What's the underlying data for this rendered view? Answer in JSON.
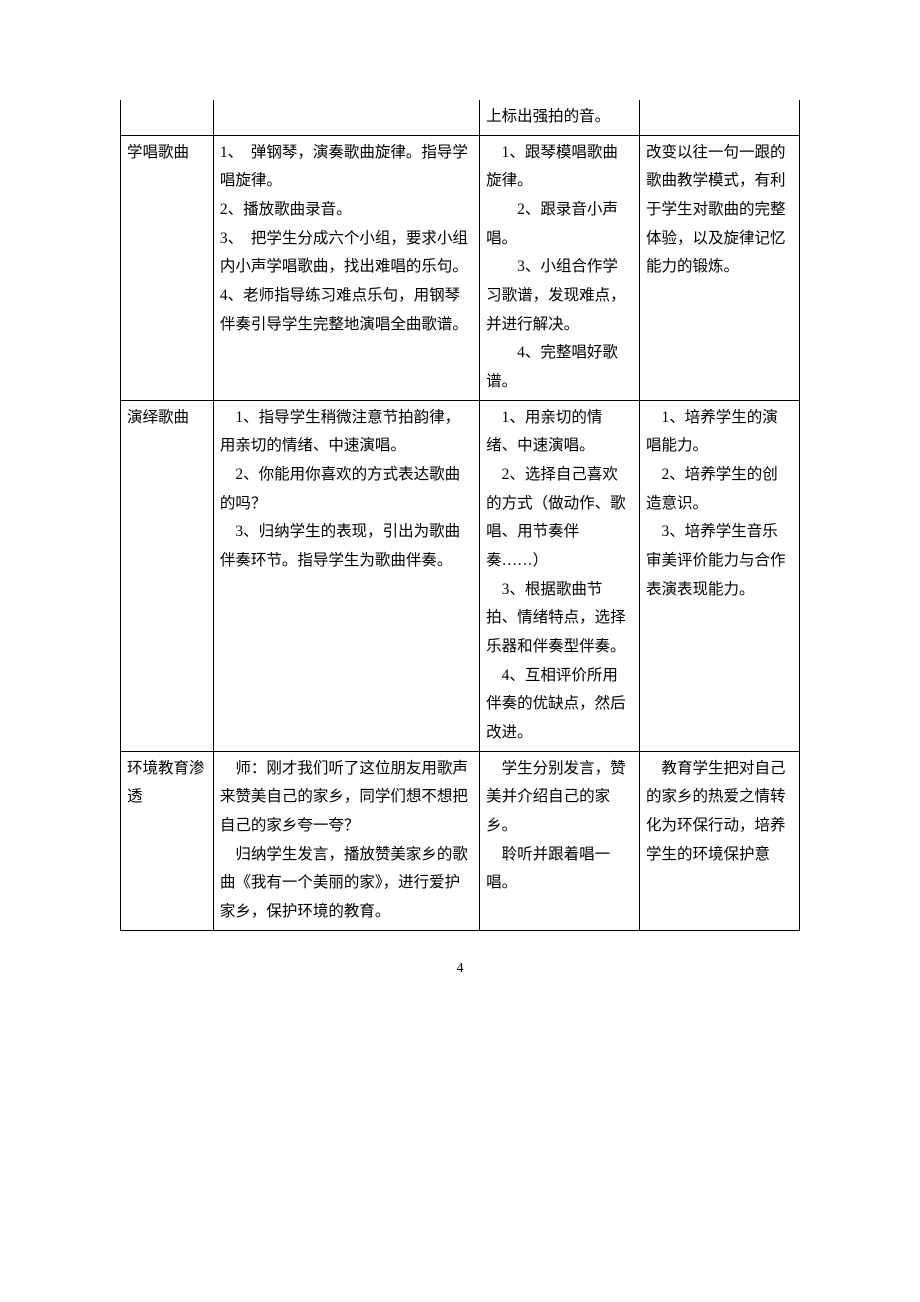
{
  "footer": "4",
  "rows": [
    {
      "c1": "",
      "c2": "",
      "c3": "上标出强拍的音。",
      "c4": "",
      "noTop": true
    },
    {
      "c1": "学唱歌曲",
      "c2": "1、　弹钢琴，演奏歌曲旋律。指导学唱旋律。\n2、播放歌曲录音。\n3、　把学生分成六个小组，要求小组内小声学唱歌曲，找出难唱的乐句。\n4、老师指导练习难点乐句，用钢琴伴奏引导学生完整地演唱全曲歌谱。",
      "c3": "　1、跟琴模唱歌曲旋律。\n　　2、跟录音小声唱。\n　　3、小组合作学习歌谱，发现难点，并进行解决。\n　　4、完整唱好歌谱。",
      "c4": "改变以往一句一跟的歌曲教学模式，有利于学生对歌曲的完整体验，以及旋律记忆能力的锻炼。"
    },
    {
      "c1": "演绎歌曲",
      "c2": "　1、指导学生稍微注意节拍韵律，用亲切的情绪、中速演唱。\n　2、你能用你喜欢的方式表达歌曲的吗？\n　3、归纳学生的表现，引出为歌曲伴奏环节。指导学生为歌曲伴奏。",
      "c3": "　1、用亲切的情绪、中速演唱。\n　2、选择自己喜欢的方式（做动作、歌唱、用节奏伴奏……）\n　3、根据歌曲节拍、情绪特点，选择乐器和伴奏型伴奏。\n　4、互相评价所用伴奏的优缺点，然后改进。",
      "c4": "　1、培养学生的演唱能力。\n　2、培养学生的创造意识。\n　3、培养学生音乐审美评价能力与合作表演表现能力。"
    },
    {
      "c1": "环境教育渗透",
      "c2": "　师：刚才我们听了这位朋友用歌声来赞美自己的家乡，同学们想不想把自己的家乡夸一夸？\n　归纳学生发言，播放赞美家乡的歌曲《我有一个美丽的家》，进行爱护家乡，保护环境的教育。",
      "c3": "　学生分别发言，赞美并介绍自己的家乡。\n　聆听并跟着唱一唱。",
      "c4": "　教育学生把对自己的家乡的热爱之情转化为环保行动，培养学生的环境保护意"
    }
  ]
}
